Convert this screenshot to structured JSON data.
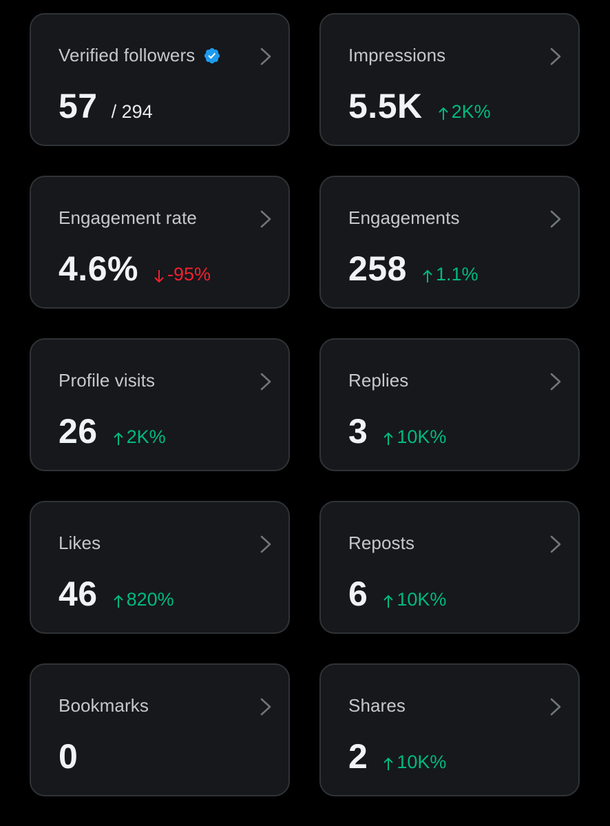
{
  "colors": {
    "background": "#000000",
    "card": "#16181c",
    "card_border": "#2f3336",
    "label": "#c4c8cc",
    "value": "#eff3f4",
    "positive": "#00ba7c",
    "negative": "#f4212e",
    "verified": "#1d9bf0"
  },
  "metrics": [
    {
      "label": "Verified followers",
      "value": "57",
      "total": "/ 294",
      "change": "",
      "direction": "",
      "verified_icon": "verified-badge-icon"
    },
    {
      "label": "Impressions",
      "value": "5.5K",
      "total": "",
      "change": "2K%",
      "direction": "up"
    },
    {
      "label": "Engagement rate",
      "value": "4.6%",
      "total": "",
      "change": "-95%",
      "direction": "down"
    },
    {
      "label": "Engagements",
      "value": "258",
      "total": "",
      "change": "1.1%",
      "direction": "up"
    },
    {
      "label": "Profile visits",
      "value": "26",
      "total": "",
      "change": "2K%",
      "direction": "up"
    },
    {
      "label": "Replies",
      "value": "3",
      "total": "",
      "change": "10K%",
      "direction": "up"
    },
    {
      "label": "Likes",
      "value": "46",
      "total": "",
      "change": "820%",
      "direction": "up"
    },
    {
      "label": "Reposts",
      "value": "6",
      "total": "",
      "change": "10K%",
      "direction": "up"
    },
    {
      "label": "Bookmarks",
      "value": "0",
      "total": "",
      "change": "",
      "direction": ""
    },
    {
      "label": "Shares",
      "value": "2",
      "total": "",
      "change": "10K%",
      "direction": "up"
    }
  ]
}
